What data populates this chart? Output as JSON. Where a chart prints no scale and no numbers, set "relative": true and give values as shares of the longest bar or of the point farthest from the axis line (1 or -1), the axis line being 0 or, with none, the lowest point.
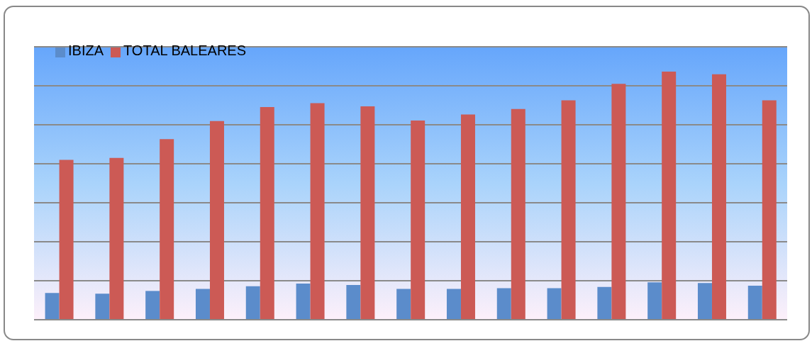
{
  "chart_data": {
    "type": "bar",
    "relative": true,
    "grid": "y",
    "legend": "top left",
    "categories": [
      null,
      null,
      null,
      null,
      null,
      null,
      null,
      null,
      null,
      null,
      null,
      null,
      null,
      null,
      null
    ],
    "series": [
      {
        "name": "IBIZA",
        "color": "#5b8ccb",
        "values": [
          0.108,
          0.105,
          0.116,
          0.124,
          0.135,
          0.146,
          0.14,
          0.124,
          0.124,
          0.127,
          0.127,
          0.132,
          0.151,
          0.148,
          0.137
        ]
      },
      {
        "name": "TOTAL BALEARES",
        "color": "#cc5a55",
        "values": [
          0.644,
          0.652,
          0.728,
          0.801,
          0.857,
          0.873,
          0.86,
          0.803,
          0.827,
          0.849,
          0.884,
          0.951,
          1,
          0.989,
          0.884
        ]
      }
    ]
  }
}
